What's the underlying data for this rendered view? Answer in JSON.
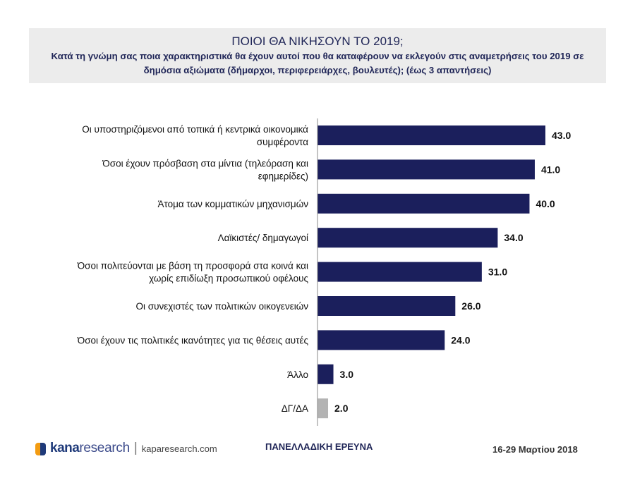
{
  "header": {
    "title": "ΠΟΙΟΙ ΘΑ ΝΙΚΗΣΟΥΝ ΤΟ 2019;",
    "subtitle": "Κατά τη γνώμη σας ποια χαρακτηριστικά θα έχουν αυτοί που θα καταφέρουν να εκλεγούν  στις αναμετρήσεις του 2019 σε δημόσια αξιώματα (δήμαρχοι, περιφερειάρχες, βουλευτές);      (έως 3 απαντήσεις)"
  },
  "chart_data": {
    "type": "bar",
    "orientation": "horizontal",
    "title": "ΠΟΙΟΙ ΘΑ ΝΙΚΗΣΟΥΝ ΤΟ 2019;",
    "xlabel": "",
    "ylabel": "",
    "xlim": [
      0,
      43
    ],
    "grid": false,
    "categories": [
      [
        "Οι υποστηριζόμενοι από τοπικά ή κεντρικά οικονομικά",
        "συμφέροντα"
      ],
      [
        "Όσοι έχουν πρόσβαση στα μίντια (τηλεόραση και",
        "εφημερίδες)"
      ],
      [
        "Άτομα των κομματικών μηχανισμών"
      ],
      [
        "Λαϊκιστές/ δημαγωγοί"
      ],
      [
        "Όσοι πολιτεύονται με βάση τη προσφορά στα κοινά και",
        "χωρίς επιδίωξη προσωπικού οφέλους"
      ],
      [
        "Οι συνεχιστές των πολιτικών οικογενειών"
      ],
      [
        "Όσοι έχουν τις πολιτικές ικανότητες για τις θέσεις αυτές"
      ],
      [
        "Άλλο"
      ],
      [
        "ΔΓ/ΔΑ"
      ]
    ],
    "values": [
      43.0,
      41.0,
      40.0,
      34.0,
      31.0,
      26.0,
      24.0,
      3.0,
      2.0
    ],
    "value_labels": [
      "43.0",
      "41.0",
      "40.0",
      "34.0",
      "31.0",
      "26.0",
      "24.0",
      "3.0",
      "2.0"
    ],
    "bar_colors": [
      "#1b1f5c",
      "#1b1f5c",
      "#1b1f5c",
      "#1b1f5c",
      "#1b1f5c",
      "#1b1f5c",
      "#1b1f5c",
      "#1b1f5c",
      "#b3b3b3"
    ]
  },
  "footer": {
    "logo_bold": "kana",
    "logo_light": "research",
    "logo_separator": "|",
    "logo_url": "kaparesearch.com",
    "survey": "ΠΑΝΕΛΛΑΔΙΚΗ ΕΡΕΥΝΑ",
    "date": "16-29 Μαρτίου 2018"
  }
}
